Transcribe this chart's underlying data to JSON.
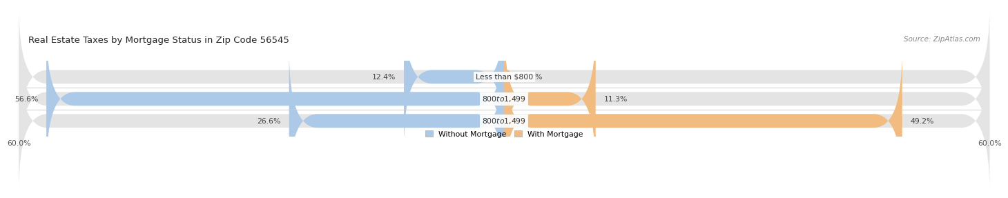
{
  "title": "Real Estate Taxes by Mortgage Status in Zip Code 56545",
  "source": "Source: ZipAtlas.com",
  "rows": [
    {
      "label": "Less than $800",
      "without_mortgage": 12.4,
      "with_mortgage": 0.81
    },
    {
      "label": "$800 to $1,499",
      "without_mortgage": 56.6,
      "with_mortgage": 11.3
    },
    {
      "label": "$800 to $1,499",
      "without_mortgage": 26.6,
      "with_mortgage": 49.2
    }
  ],
  "axis_limit": 60.0,
  "color_without": "#adc9e8",
  "color_with": "#f2bc80",
  "bar_bg_color": "#e4e4e4",
  "bar_height": 0.62,
  "title_fontsize": 9.5,
  "label_fontsize": 7.8,
  "tick_fontsize": 7.8,
  "source_fontsize": 7.5,
  "legend_label_without": "Without Mortgage",
  "legend_label_with": "With Mortgage"
}
